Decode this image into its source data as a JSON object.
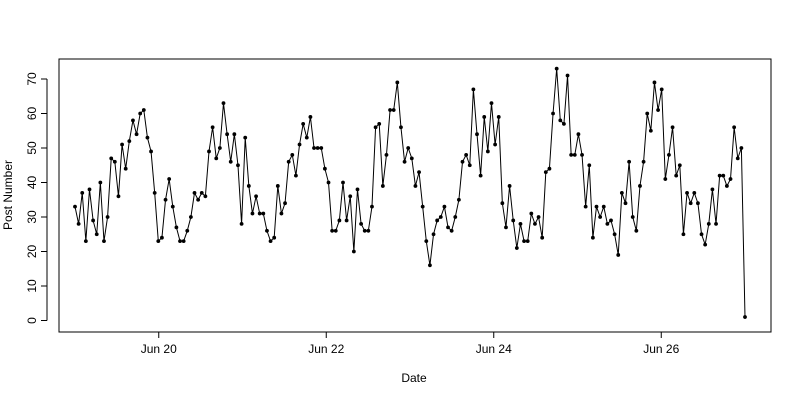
{
  "chart_data": {
    "type": "line",
    "title": "",
    "xlabel": "Date",
    "ylabel": "Post Number",
    "x_ticks": [
      "Jun 20",
      "Jun 22",
      "Jun 24",
      "Jun 26"
    ],
    "y_ticks": [
      0,
      10,
      20,
      30,
      40,
      50,
      60,
      70
    ],
    "ylim": [
      0,
      75
    ],
    "xlim": [
      "2014-06-19 00:00",
      "2014-06-27 03:00"
    ],
    "grid": false,
    "legend": "none",
    "series": [
      {
        "interval_hours": 1,
        "x_start": "2014-06-19 00:00",
        "x_end": "2014-06-27 00:00",
        "values": [
          33,
          28,
          37,
          23,
          38,
          29,
          25,
          40,
          23,
          30,
          47,
          46,
          36,
          51,
          44,
          52,
          58,
          54,
          60,
          61,
          53,
          49,
          37,
          23,
          24,
          35,
          41,
          33,
          27,
          23,
          23,
          26,
          30,
          37,
          35,
          37,
          36,
          49,
          56,
          47,
          50,
          63,
          54,
          46,
          54,
          45,
          28,
          53,
          39,
          31,
          36,
          31,
          31,
          26,
          23,
          24,
          39,
          31,
          34,
          46,
          48,
          42,
          51,
          57,
          53,
          59,
          50,
          50,
          50,
          44,
          40,
          26,
          26,
          29,
          40,
          29,
          36,
          20,
          38,
          28,
          26,
          26,
          33,
          56,
          57,
          39,
          48,
          61,
          61,
          69,
          56,
          46,
          50,
          47,
          39,
          43,
          33,
          23,
          16,
          25,
          29,
          30,
          33,
          27,
          26,
          30,
          35,
          46,
          48,
          45,
          67,
          54,
          42,
          59,
          49,
          63,
          51,
          59,
          34,
          27,
          39,
          29,
          21,
          28,
          23,
          23,
          31,
          28,
          30,
          24,
          43,
          44,
          60,
          73,
          58,
          57,
          71,
          48,
          48,
          54,
          48,
          33,
          45,
          24,
          33,
          30,
          33,
          28,
          29,
          25,
          19,
          37,
          34,
          46,
          30,
          26,
          39,
          46,
          60,
          55,
          69,
          61,
          67,
          41,
          48,
          56,
          42,
          45,
          25,
          37,
          34,
          37,
          34,
          25,
          22,
          28,
          38,
          28,
          42,
          42,
          39,
          41,
          56,
          47,
          50,
          1
        ]
      }
    ],
    "colors": {
      "line": "#000000",
      "points": "#000000",
      "frame": "#000000"
    }
  }
}
